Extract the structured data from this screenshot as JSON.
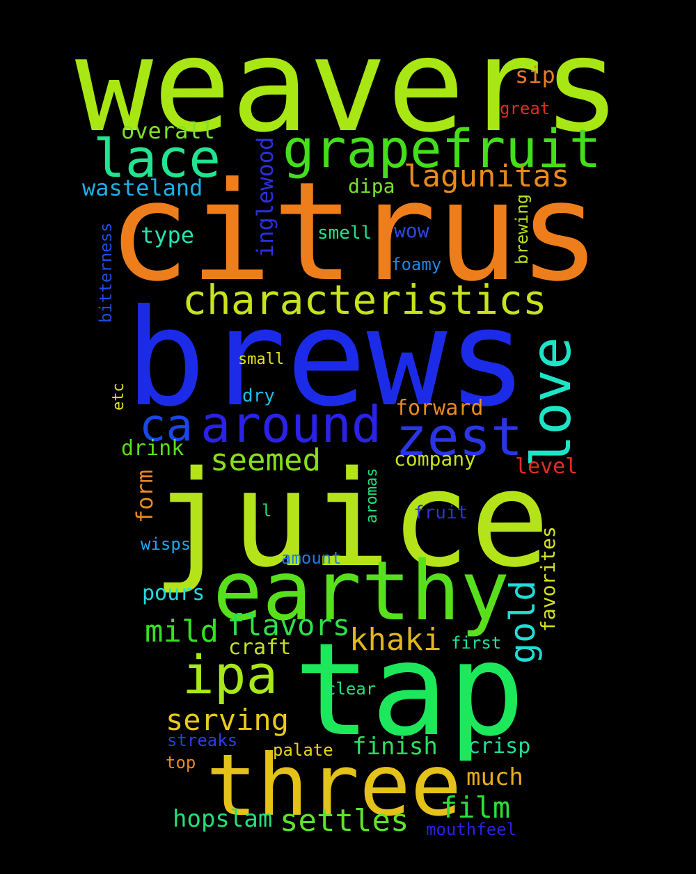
{
  "words": [
    {
      "text": "weavers",
      "color": "#a8e614"
    },
    {
      "text": "citrus",
      "color": "#ee7e1c"
    },
    {
      "text": "brews",
      "color": "#1c2be8"
    },
    {
      "text": "juice",
      "color": "#b5e31a"
    },
    {
      "text": "tap",
      "color": "#1de85c"
    },
    {
      "text": "three",
      "color": "#e4c21a"
    },
    {
      "text": "earthy",
      "color": "#58e01c"
    },
    {
      "text": "grapefruit",
      "color": "#44de1c"
    },
    {
      "text": "characteristics",
      "color": "#c9e21e"
    },
    {
      "text": "lace",
      "color": "#21e591"
    },
    {
      "text": "around",
      "color": "#2a22e4"
    },
    {
      "text": "zest",
      "color": "#2a36e6"
    },
    {
      "text": "love",
      "color": "#1ee4c7"
    },
    {
      "text": "ca",
      "color": "#1a47e6"
    },
    {
      "text": "ipa",
      "color": "#a8e81b"
    },
    {
      "text": "lagunitas",
      "color": "#e88a1c"
    },
    {
      "text": "gold",
      "color": "#21ddd6"
    },
    {
      "text": "seemed",
      "color": "#86e01a"
    },
    {
      "text": "mild",
      "color": "#33e21f"
    },
    {
      "text": "flavors",
      "color": "#2fe04b"
    },
    {
      "text": "khaki",
      "color": "#e1b81c"
    },
    {
      "text": "serving",
      "color": "#e8cb1a"
    },
    {
      "text": "settles",
      "color": "#5de42a"
    },
    {
      "text": "film",
      "color": "#2ae038"
    },
    {
      "text": "finish",
      "color": "#29e062"
    },
    {
      "text": "hopslam",
      "color": "#21e27a"
    },
    {
      "text": "overall",
      "color": "#7ee22a"
    },
    {
      "text": "wasteland",
      "color": "#1eb0e6"
    },
    {
      "text": "inglewood",
      "color": "#2b30e2"
    },
    {
      "text": "type",
      "color": "#23e6b3"
    },
    {
      "text": "dipa",
      "color": "#7ae22a"
    },
    {
      "text": "sip",
      "color": "#e87a26"
    },
    {
      "text": "great",
      "color": "#e42c1e"
    },
    {
      "text": "smell",
      "color": "#22e08e"
    },
    {
      "text": "wow",
      "color": "#2a49e4"
    },
    {
      "text": "brewing",
      "color": "#b9e21e"
    },
    {
      "text": "foamy",
      "color": "#1e86e8"
    },
    {
      "text": "bitterness",
      "color": "#1c4ee0"
    },
    {
      "text": "small",
      "color": "#e4e01e"
    },
    {
      "text": "dry",
      "color": "#1ebde6"
    },
    {
      "text": "etc",
      "color": "#e4e020"
    },
    {
      "text": "forward",
      "color": "#e88c1e"
    },
    {
      "text": "drink",
      "color": "#5ae01e"
    },
    {
      "text": "company",
      "color": "#c6e21e"
    },
    {
      "text": "level",
      "color": "#e42c22"
    },
    {
      "text": "form",
      "color": "#e88a1e"
    },
    {
      "text": "aromas",
      "color": "#22e07a"
    },
    {
      "text": "l",
      "color": "#22e07a"
    },
    {
      "text": "fruit",
      "color": "#2a30e4"
    },
    {
      "text": "wisps",
      "color": "#1ea8e6"
    },
    {
      "text": "favorites",
      "color": "#d6e21e"
    },
    {
      "text": "amount",
      "color": "#1e7ae8"
    },
    {
      "text": "pours",
      "color": "#1edce0"
    },
    {
      "text": "craft",
      "color": "#c6e21e"
    },
    {
      "text": "first",
      "color": "#22e0a4"
    },
    {
      "text": "clear",
      "color": "#22e07a"
    },
    {
      "text": "streaks",
      "color": "#2a40e4"
    },
    {
      "text": "palate",
      "color": "#e8d21e"
    },
    {
      "text": "crisp",
      "color": "#1ee09a"
    },
    {
      "text": "top",
      "color": "#e88a1e"
    },
    {
      "text": "much",
      "color": "#e8ac1e"
    },
    {
      "text": "mouthfeel",
      "color": "#2a22e4"
    }
  ]
}
